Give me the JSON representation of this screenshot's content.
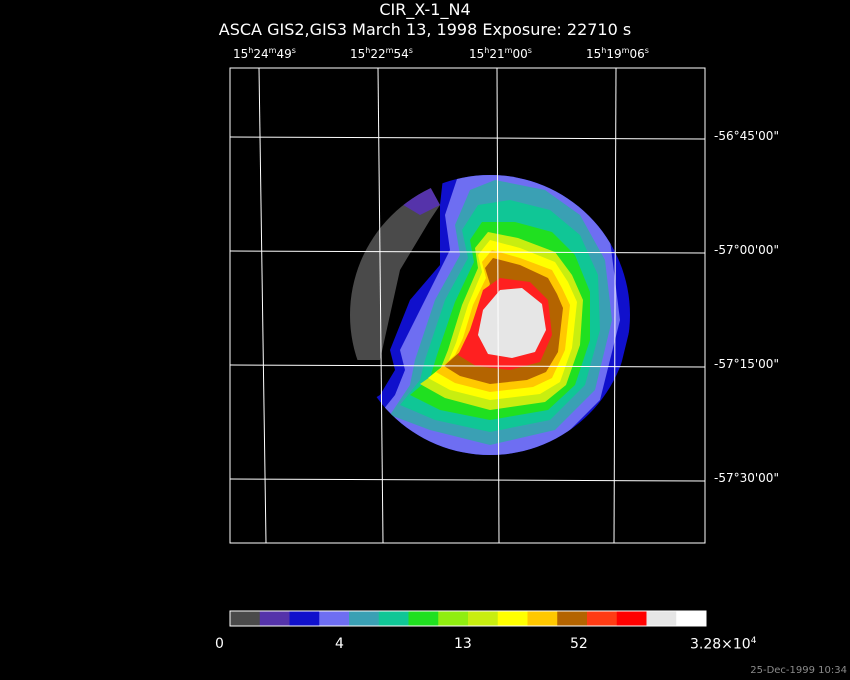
{
  "header": {
    "title": "CIR_X-1_N4",
    "subtitle": "ASCA GIS2,GIS3 March 13, 1998 Exposure: 22710 s"
  },
  "ra_labels": [
    {
      "h": "15",
      "m": "24",
      "s": "49"
    },
    {
      "h": "15",
      "m": "22",
      "s": "54"
    },
    {
      "h": "15",
      "m": "21",
      "s": "00"
    },
    {
      "h": "15",
      "m": "19",
      "s": "06"
    }
  ],
  "dec_labels": [
    "-56°45'00\"",
    "-57°00'00\"",
    "-57°15'00\"",
    "-57°30'00\""
  ],
  "colorbar": {
    "colors": [
      "#4a4a4a",
      "#5533aa",
      "#1010cc",
      "#6e6ef2",
      "#3aa0b4",
      "#10c696",
      "#20e020",
      "#90ee10",
      "#c8ee10",
      "#ffff00",
      "#ffc800",
      "#b46400",
      "#ff3c14",
      "#ff0000",
      "#e6e6e6",
      "#ffffff"
    ],
    "ticks": {
      "t0": "0",
      "t1": "4",
      "t2": "13",
      "t3": "52",
      "max_mantissa": "3.28×10",
      "max_exp": "4"
    }
  },
  "timestamp": "25-Dec-1999 10:34",
  "image_colors": {
    "grid": "#ffffff",
    "c_gray": "#4a4a4a",
    "c_purple": "#5533aa",
    "c_blue": "#1010cc",
    "c_lightblue": "#6e6ef2",
    "c_teal": "#3aa0b4",
    "c_cyan": "#10c696",
    "c_green": "#20e020",
    "c_lime": "#c8ee10",
    "c_yellow": "#ffff00",
    "c_orange": "#ffc800",
    "c_brown": "#b46400",
    "c_red": "#ff2020",
    "c_core": "#e6e6e6"
  }
}
